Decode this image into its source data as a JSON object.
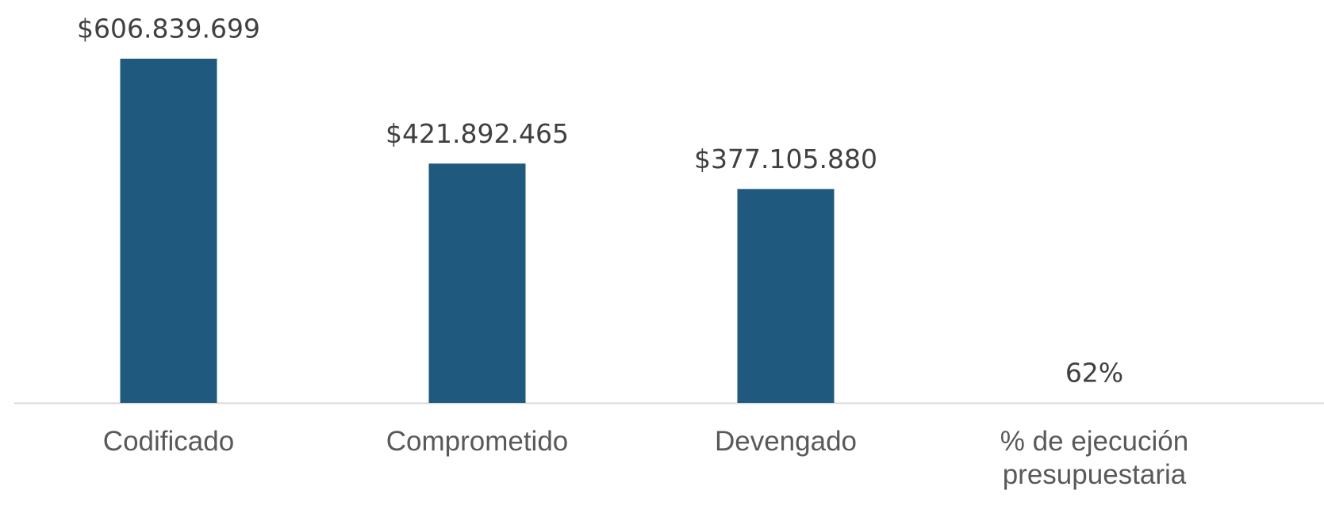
{
  "chart_data": {
    "type": "bar",
    "categories": [
      "Codificado",
      "Comprometido",
      "Devengado",
      "% de ejecución presupuestaria"
    ],
    "values": [
      606839699,
      421892465,
      377105880,
      62
    ],
    "value_labels": [
      "$606.839.699",
      "$421.892.465",
      "$377.105.880",
      "62%"
    ],
    "color": "#1f5a7e"
  }
}
